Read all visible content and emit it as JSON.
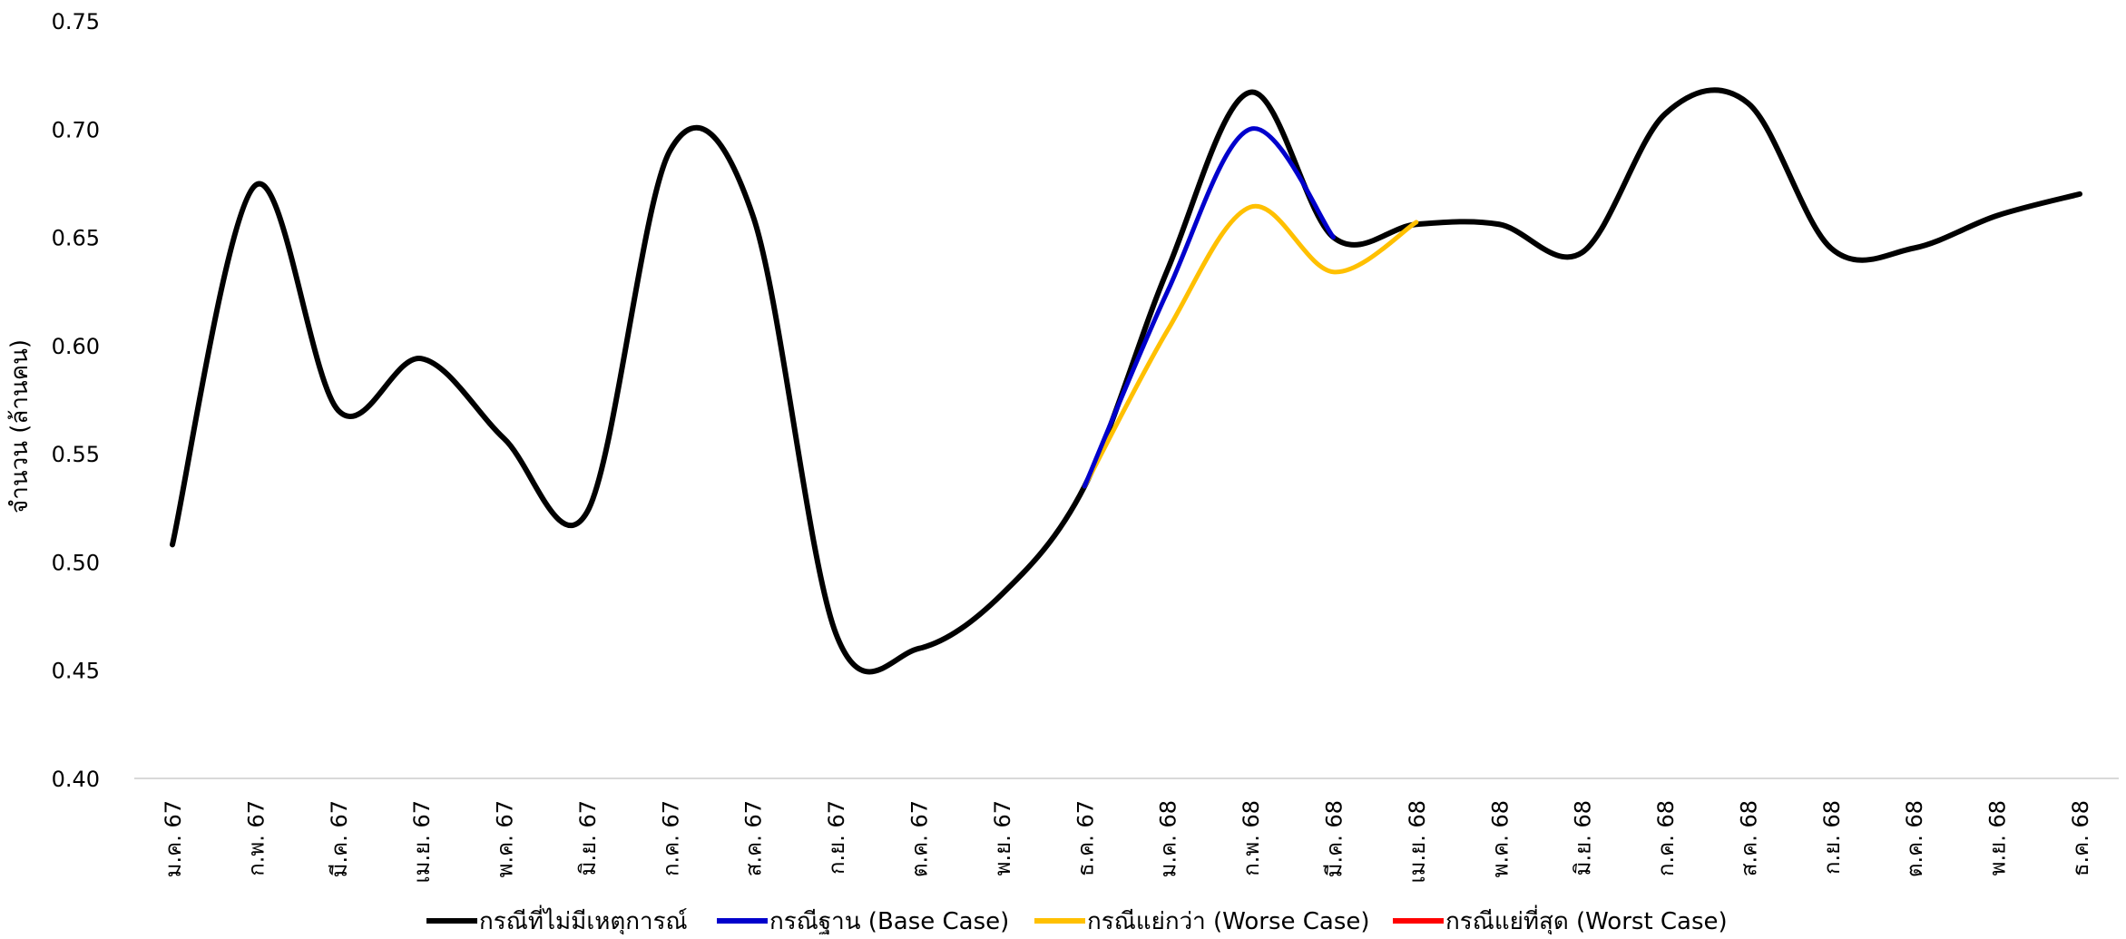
{
  "chart_data": {
    "type": "line",
    "ylabel": "จำนวน (ล้านคน)",
    "xlabel": "",
    "ylim": [
      0.4,
      0.75
    ],
    "yticks": [
      "0.40",
      "0.45",
      "0.50",
      "0.55",
      "0.60",
      "0.65",
      "0.70",
      "0.75"
    ],
    "categories": [
      "ม.ค. 67",
      "ก.พ. 67",
      "มี.ค. 67",
      "เม.ย. 67",
      "พ.ค. 67",
      "มิ.ย. 67",
      "ก.ค. 67",
      "ส.ค. 67",
      "ก.ย. 67",
      "ต.ค. 67",
      "พ.ย. 67",
      "ธ.ค. 67",
      "ม.ค. 68",
      "ก.พ. 68",
      "มี.ค. 68",
      "เม.ย. 68",
      "พ.ค. 68",
      "มิ.ย. 68",
      "ก.ค. 68",
      "ส.ค. 68",
      "ก.ย. 68",
      "ต.ค. 68",
      "พ.ย. 68",
      "ธ.ค. 68"
    ],
    "grid": false,
    "legend_position": "bottom",
    "series": [
      {
        "name": "กรณีที่ไม่มีเหตุการณ์",
        "color": "#000000",
        "values": [
          0.508,
          0.674,
          0.57,
          0.594,
          0.557,
          0.523,
          0.69,
          0.66,
          0.467,
          0.46,
          0.485,
          0.535,
          0.635,
          0.717,
          0.65,
          0.656,
          0.656,
          0.643,
          0.707,
          0.712,
          0.645,
          0.645,
          0.66,
          0.67
        ]
      },
      {
        "name": "กรณีฐาน (Base Case)",
        "color": "#0000CC",
        "values": [
          null,
          null,
          null,
          null,
          null,
          null,
          null,
          null,
          null,
          null,
          null,
          0.535,
          0.625,
          0.7,
          0.65,
          null,
          null,
          null,
          null,
          null,
          null,
          null,
          null,
          null
        ]
      },
      {
        "name": "กรณีแย่กว่า (Worse Case)",
        "color": "#FFC000",
        "values": [
          null,
          null,
          null,
          null,
          null,
          null,
          null,
          null,
          null,
          null,
          null,
          0.535,
          0.607,
          0.664,
          0.634,
          0.657,
          null,
          null,
          null,
          null,
          null,
          null,
          null,
          null
        ]
      },
      {
        "name": "กรณีแย่ที่สุด (Worst Case)",
        "color": "#FF0000",
        "values": [
          null,
          null,
          null,
          null,
          null,
          null,
          null,
          null,
          null,
          null,
          null,
          null,
          null,
          null,
          null,
          null,
          null,
          null,
          null,
          null,
          null,
          null,
          null,
          null
        ]
      }
    ]
  }
}
